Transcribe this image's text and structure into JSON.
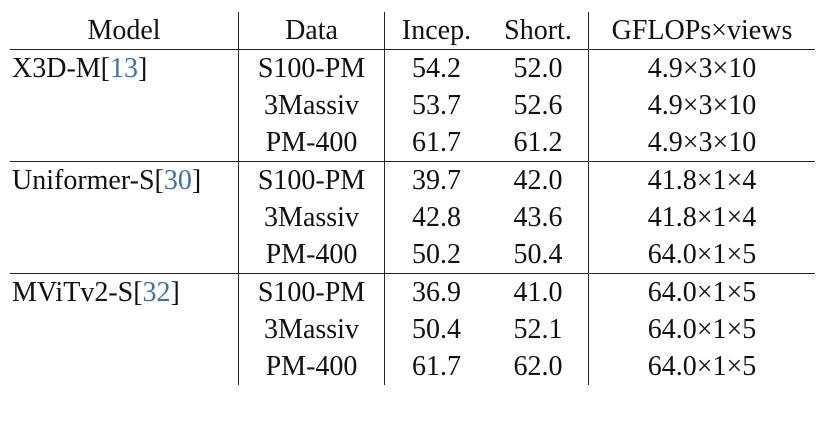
{
  "headers": {
    "model": "Model",
    "data": "Data",
    "incep": "Incep.",
    "short": "Short.",
    "gflops": "GFLOPs×views"
  },
  "groups": [
    {
      "model": "X3D-M",
      "ref": "13",
      "rows": [
        {
          "data": "S100-PM",
          "incep": "54.2",
          "short": "52.0",
          "gflops": "4.9×3×10",
          "bold": "incep"
        },
        {
          "data": "3Massiv",
          "incep": "53.7",
          "short": "52.6",
          "gflops": "4.9×3×10",
          "bold": "incep"
        },
        {
          "data": "PM-400",
          "incep": "61.7",
          "short": "61.2",
          "gflops": "4.9×3×10",
          "bold": "incep"
        }
      ]
    },
    {
      "model": "Uniformer-S",
      "ref": "30",
      "rows": [
        {
          "data": "S100-PM",
          "incep": "39.7",
          "short": "42.0",
          "gflops": "41.8×1×4",
          "bold": "short"
        },
        {
          "data": "3Massiv",
          "incep": "42.8",
          "short": "43.6",
          "gflops": "41.8×1×4",
          "bold": "short"
        },
        {
          "data": "PM-400",
          "incep": "50.2",
          "short": "50.4",
          "gflops": "64.0×1×5",
          "bold": "short"
        }
      ]
    },
    {
      "model": "MViTv2-S",
      "ref": "32",
      "rows": [
        {
          "data": "S100-PM",
          "incep": "36.9",
          "short": "41.0",
          "gflops": "64.0×1×5",
          "bold": "short"
        },
        {
          "data": "3Massiv",
          "incep": "50.4",
          "short": "52.1",
          "gflops": "64.0×1×5",
          "bold": "short"
        },
        {
          "data": "PM-400",
          "incep": "61.7",
          "short": "62.0",
          "gflops": "64.0×1×5",
          "bold": "short"
        }
      ]
    }
  ]
}
